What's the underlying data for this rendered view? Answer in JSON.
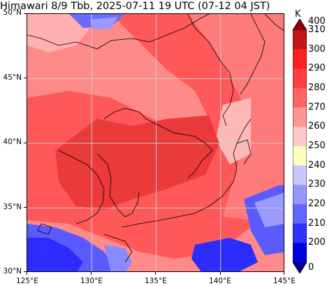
{
  "title": "Himawari 8/9 Tbb, 2025-07-11 19 UTC (07-12 04 JST)",
  "map": {
    "lon_range": [
      125,
      145
    ],
    "lat_range": [
      30,
      50
    ],
    "gridlines": true,
    "y_ticks": [
      "50°N",
      "45°N",
      "40°N",
      "35°N",
      "30°N"
    ],
    "x_ticks": [
      "125°E",
      "130°E",
      "135°E",
      "140°E",
      "145°E"
    ]
  },
  "colorbar": {
    "unit": "K",
    "labels": [
      "400",
      "310",
      "300",
      "290",
      "280",
      "270",
      "260",
      "250",
      "240",
      "230",
      "220",
      "210",
      "200",
      "0"
    ],
    "colors": [
      "#8b0000",
      "#c41414",
      "#ff2020",
      "#ff3f3f",
      "#ff6464",
      "#ff9696",
      "#ffc8c8",
      "#ffffc0",
      "#c8c8ff",
      "#9696ff",
      "#6464ff",
      "#3232ff",
      "#0000dc",
      "#00008b"
    ]
  },
  "palette": {
    "background_warm": "#ff5050",
    "land_warm": "#e53232",
    "cloud_mid": "#ff8080",
    "cloud_high": "#ffb4b4",
    "cold": "#3a3aff",
    "cold_mid": "#7a7aff",
    "coastline": "#000000"
  }
}
